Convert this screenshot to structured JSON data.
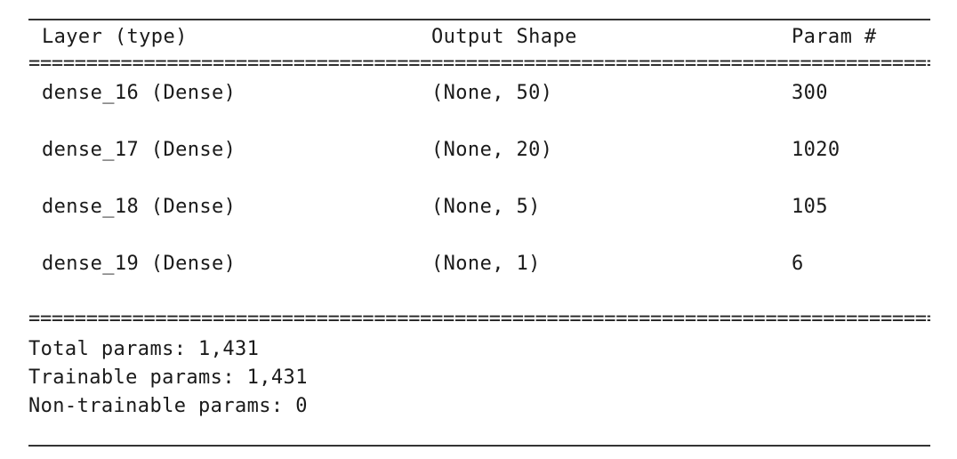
{
  "header": {
    "layer_type": "Layer (type)",
    "output_shape": "Output Shape",
    "param_count": "Param #"
  },
  "separator": "====================================================================================================",
  "rows": [
    {
      "layer": "dense_16 (Dense)",
      "shape": "(None, 50)",
      "params": "300"
    },
    {
      "layer": "dense_17 (Dense)",
      "shape": "(None, 20)",
      "params": "1020"
    },
    {
      "layer": "dense_18 (Dense)",
      "shape": "(None, 5)",
      "params": "105"
    },
    {
      "layer": "dense_19 (Dense)",
      "shape": "(None, 1)",
      "params": "6"
    }
  ],
  "totals": {
    "total": "Total params: 1,431",
    "trainable": "Trainable params: 1,431",
    "non_trainable": "Non-trainable params: 0"
  }
}
